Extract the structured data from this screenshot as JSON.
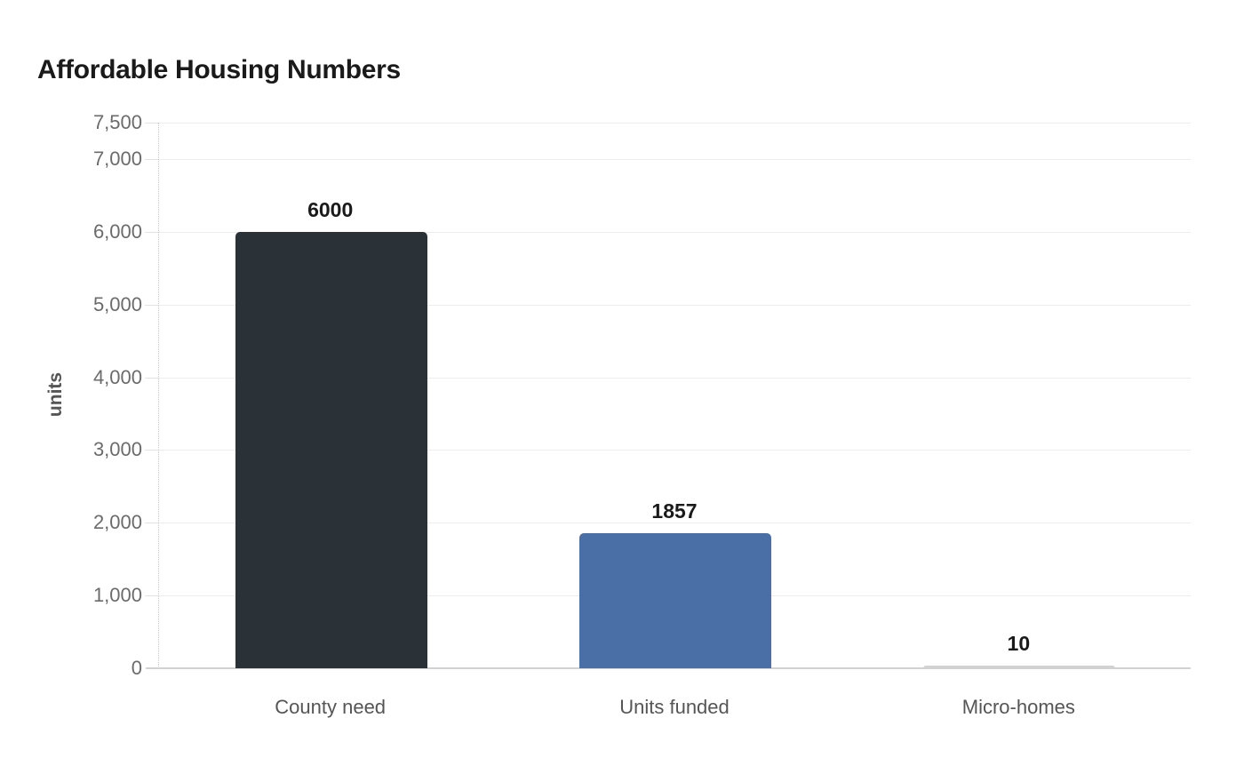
{
  "title": "Affordable Housing Numbers",
  "chart_data": {
    "type": "bar",
    "title": "Affordable Housing Numbers",
    "xlabel": "",
    "ylabel": "units",
    "categories": [
      "County need",
      "Units funded",
      "Micro-homes"
    ],
    "values": [
      6000,
      1857,
      10
    ],
    "data_labels": [
      "6000",
      "1857",
      "10"
    ],
    "bar_colors": [
      "#2b3237",
      "#4a6fa6",
      "#d2d2d2"
    ],
    "ylim": [
      0,
      7500
    ],
    "yticks": [
      0,
      1000,
      2000,
      3000,
      4000,
      5000,
      6000,
      7000,
      7500
    ],
    "ytick_labels": [
      "0",
      "1,000",
      "2,000",
      "3,000",
      "4,000",
      "5,000",
      "6,000",
      "7,000",
      "7,500"
    ],
    "grid": "horizontal",
    "legend": "none",
    "background": "#ffffff",
    "axis_line_style": "dotted"
  }
}
